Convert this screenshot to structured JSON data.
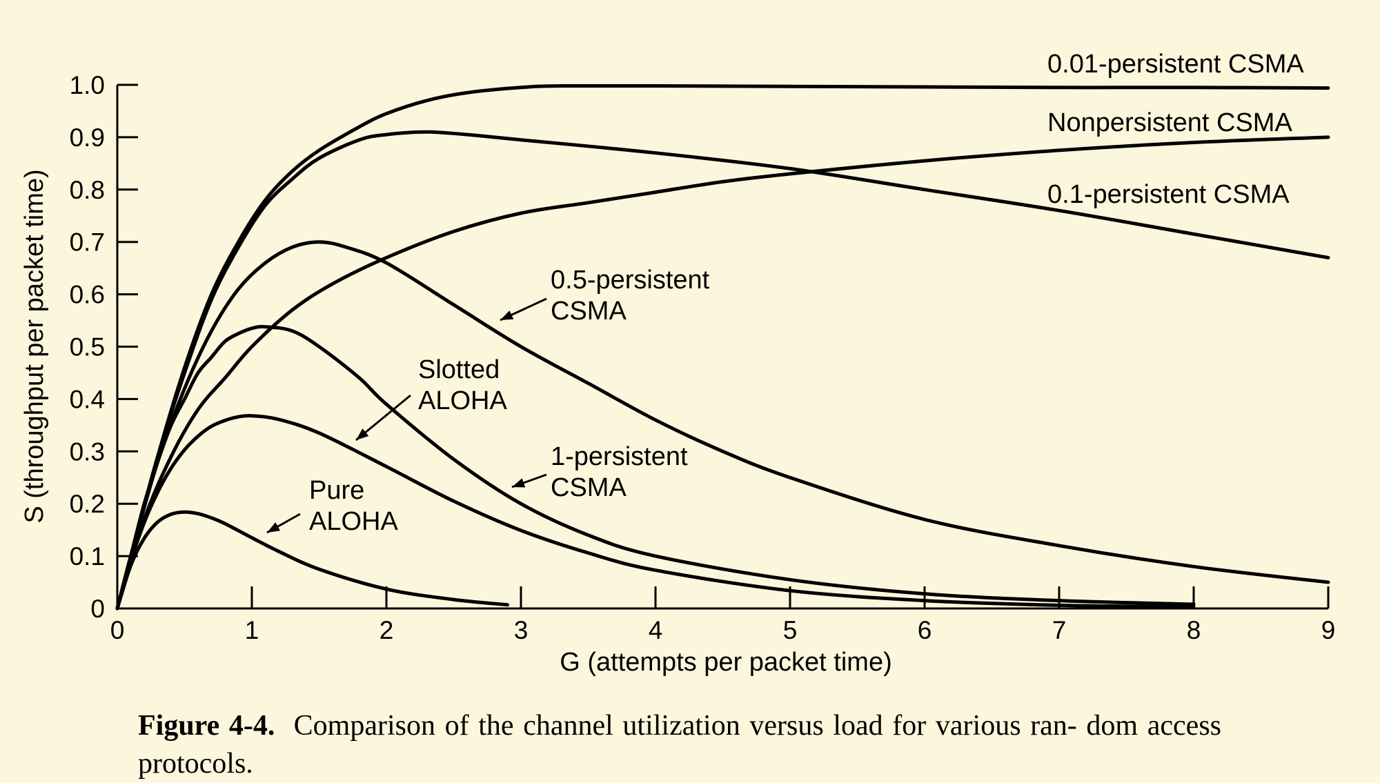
{
  "caption": {
    "label": "Figure 4-4.",
    "text": "Comparison of the channel utilization versus load for various ran- dom access protocols."
  },
  "chart_data": {
    "type": "line",
    "title": "",
    "xlabel": "G (attempts per packet time)",
    "ylabel": "S (throughput per packet time)",
    "xlim": [
      0,
      9
    ],
    "ylim": [
      0,
      1.0
    ],
    "xticks": [
      0,
      1,
      2,
      3,
      4,
      5,
      6,
      7,
      8,
      9
    ],
    "yticks": [
      0,
      0.1,
      0.2,
      0.3,
      0.4,
      0.5,
      0.6,
      0.7,
      0.8,
      0.9,
      1.0
    ],
    "ytick_labels": [
      "0",
      "0.1",
      "0.2",
      "0.3",
      "0.4",
      "0.5",
      "0.6",
      "0.7",
      "0.8",
      "0.9",
      "1.0"
    ],
    "grid": false,
    "series": [
      {
        "name": "Pure ALOHA",
        "label_lines": [
          "Pure",
          "ALOHA"
        ],
        "points": [
          [
            0,
            0
          ],
          [
            0.1,
            0.082
          ],
          [
            0.2,
            0.134
          ],
          [
            0.3,
            0.165
          ],
          [
            0.4,
            0.18
          ],
          [
            0.5,
            0.184
          ],
          [
            0.6,
            0.181
          ],
          [
            0.7,
            0.173
          ],
          [
            0.8,
            0.162
          ],
          [
            1.0,
            0.135
          ],
          [
            1.2,
            0.109
          ],
          [
            1.5,
            0.075
          ],
          [
            2.0,
            0.037
          ],
          [
            2.5,
            0.017
          ],
          [
            2.9,
            0.007
          ]
        ]
      },
      {
        "name": "Slotted ALOHA",
        "label_lines": [
          "Slotted",
          "ALOHA"
        ],
        "points": [
          [
            0,
            0
          ],
          [
            0.1,
            0.09
          ],
          [
            0.2,
            0.164
          ],
          [
            0.3,
            0.222
          ],
          [
            0.4,
            0.268
          ],
          [
            0.5,
            0.303
          ],
          [
            0.6,
            0.329
          ],
          [
            0.7,
            0.348
          ],
          [
            0.8,
            0.359
          ],
          [
            0.9,
            0.366
          ],
          [
            1.0,
            0.368
          ],
          [
            1.2,
            0.361
          ],
          [
            1.5,
            0.335
          ],
          [
            2.0,
            0.271
          ],
          [
            2.5,
            0.205
          ],
          [
            3.0,
            0.149
          ],
          [
            3.5,
            0.106
          ],
          [
            4.0,
            0.073
          ],
          [
            5.0,
            0.034
          ],
          [
            6.0,
            0.015
          ],
          [
            7.0,
            0.006
          ],
          [
            8.0,
            0.003
          ]
        ]
      },
      {
        "name": "1-persistent CSMA",
        "label_lines": [
          "1-persistent",
          "CSMA"
        ],
        "points": [
          [
            0,
            0
          ],
          [
            0.1,
            0.1
          ],
          [
            0.2,
            0.2
          ],
          [
            0.3,
            0.28
          ],
          [
            0.4,
            0.35
          ],
          [
            0.5,
            0.4
          ],
          [
            0.6,
            0.45
          ],
          [
            0.7,
            0.48
          ],
          [
            0.8,
            0.51
          ],
          [
            0.9,
            0.525
          ],
          [
            1.0,
            0.535
          ],
          [
            1.1,
            0.538
          ],
          [
            1.3,
            0.53
          ],
          [
            1.5,
            0.5
          ],
          [
            1.8,
            0.44
          ],
          [
            2.0,
            0.39
          ],
          [
            2.5,
            0.285
          ],
          [
            3.0,
            0.2
          ],
          [
            3.5,
            0.14
          ],
          [
            4.0,
            0.1
          ],
          [
            5.0,
            0.055
          ],
          [
            6.0,
            0.028
          ],
          [
            7.0,
            0.015
          ],
          [
            8.0,
            0.008
          ]
        ]
      },
      {
        "name": "0.5-persistent CSMA",
        "label_lines": [
          "0.5-persistent",
          "CSMA"
        ],
        "points": [
          [
            0,
            0
          ],
          [
            0.1,
            0.1
          ],
          [
            0.3,
            0.28
          ],
          [
            0.5,
            0.42
          ],
          [
            0.7,
            0.53
          ],
          [
            0.9,
            0.61
          ],
          [
            1.1,
            0.66
          ],
          [
            1.3,
            0.69
          ],
          [
            1.5,
            0.7
          ],
          [
            1.7,
            0.69
          ],
          [
            2.0,
            0.66
          ],
          [
            2.5,
            0.58
          ],
          [
            3.0,
            0.5
          ],
          [
            3.5,
            0.43
          ],
          [
            4.0,
            0.36
          ],
          [
            4.5,
            0.3
          ],
          [
            5.0,
            0.25
          ],
          [
            6.0,
            0.17
          ],
          [
            7.0,
            0.12
          ],
          [
            8.0,
            0.08
          ],
          [
            9.0,
            0.05
          ]
        ]
      },
      {
        "name": "0.1-persistent CSMA",
        "label_lines": [
          "0.1-persistent CSMA"
        ],
        "points": [
          [
            0,
            0
          ],
          [
            0.1,
            0.1
          ],
          [
            0.3,
            0.29
          ],
          [
            0.5,
            0.45
          ],
          [
            0.7,
            0.59
          ],
          [
            0.9,
            0.69
          ],
          [
            1.1,
            0.77
          ],
          [
            1.3,
            0.82
          ],
          [
            1.5,
            0.86
          ],
          [
            1.8,
            0.895
          ],
          [
            2.0,
            0.905
          ],
          [
            2.3,
            0.91
          ],
          [
            2.6,
            0.905
          ],
          [
            3.0,
            0.895
          ],
          [
            4.0,
            0.87
          ],
          [
            5.0,
            0.84
          ],
          [
            6.0,
            0.8
          ],
          [
            7.0,
            0.76
          ],
          [
            8.0,
            0.715
          ],
          [
            9.0,
            0.67
          ]
        ]
      },
      {
        "name": "Nonpersistent CSMA",
        "label_lines": [
          "Nonpersistent CSMA"
        ],
        "points": [
          [
            0,
            0
          ],
          [
            0.2,
            0.17
          ],
          [
            0.4,
            0.29
          ],
          [
            0.6,
            0.38
          ],
          [
            0.8,
            0.44
          ],
          [
            1.0,
            0.5
          ],
          [
            1.3,
            0.57
          ],
          [
            1.6,
            0.62
          ],
          [
            2.0,
            0.67
          ],
          [
            2.5,
            0.72
          ],
          [
            3.0,
            0.755
          ],
          [
            3.5,
            0.775
          ],
          [
            4.0,
            0.795
          ],
          [
            4.5,
            0.815
          ],
          [
            5.0,
            0.83
          ],
          [
            6.0,
            0.855
          ],
          [
            7.0,
            0.875
          ],
          [
            8.0,
            0.89
          ],
          [
            9.0,
            0.9
          ]
        ]
      },
      {
        "name": "0.01-persistent CSMA",
        "label_lines": [
          "0.01-persistent CSMA"
        ],
        "points": [
          [
            0,
            0
          ],
          [
            0.1,
            0.1
          ],
          [
            0.3,
            0.29
          ],
          [
            0.5,
            0.46
          ],
          [
            0.7,
            0.6
          ],
          [
            0.9,
            0.7
          ],
          [
            1.1,
            0.78
          ],
          [
            1.3,
            0.835
          ],
          [
            1.5,
            0.875
          ],
          [
            1.8,
            0.92
          ],
          [
            2.0,
            0.945
          ],
          [
            2.3,
            0.97
          ],
          [
            2.6,
            0.985
          ],
          [
            3.0,
            0.995
          ],
          [
            3.3,
            0.998
          ],
          [
            4.0,
            0.998
          ],
          [
            5.0,
            0.997
          ],
          [
            6.0,
            0.996
          ],
          [
            7.0,
            0.995
          ],
          [
            8.0,
            0.995
          ],
          [
            9.0,
            0.994
          ]
        ]
      }
    ]
  }
}
